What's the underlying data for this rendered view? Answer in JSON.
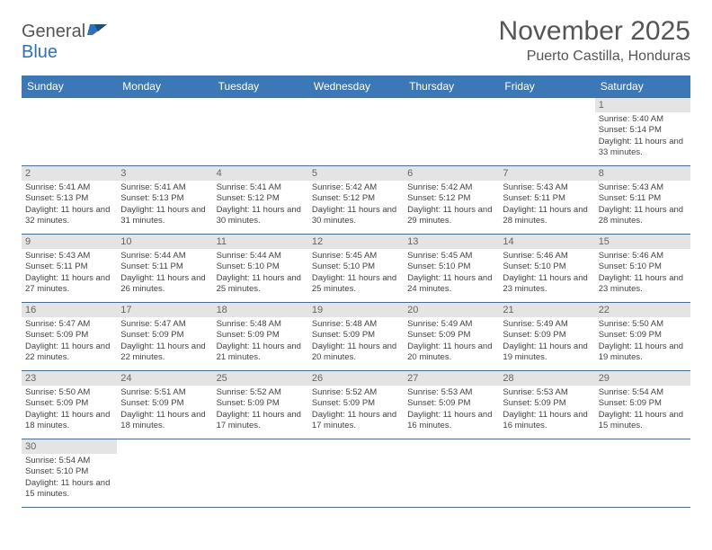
{
  "logo": {
    "text_general": "General",
    "text_blue": "Blue"
  },
  "title": "November 2025",
  "location": "Puerto Castilla, Honduras",
  "colors": {
    "header_bg": "#3b78b5",
    "header_text": "#ffffff",
    "daynum_bg": "#e4e4e4",
    "rule": "#2d72b8",
    "logo_blue": "#2d72b8"
  },
  "day_headers": [
    "Sunday",
    "Monday",
    "Tuesday",
    "Wednesday",
    "Thursday",
    "Friday",
    "Saturday"
  ],
  "weeks": [
    [
      {
        "n": "",
        "sr": "",
        "ss": "",
        "dl": ""
      },
      {
        "n": "",
        "sr": "",
        "ss": "",
        "dl": ""
      },
      {
        "n": "",
        "sr": "",
        "ss": "",
        "dl": ""
      },
      {
        "n": "",
        "sr": "",
        "ss": "",
        "dl": ""
      },
      {
        "n": "",
        "sr": "",
        "ss": "",
        "dl": ""
      },
      {
        "n": "",
        "sr": "",
        "ss": "",
        "dl": ""
      },
      {
        "n": "1",
        "sr": "Sunrise: 5:40 AM",
        "ss": "Sunset: 5:14 PM",
        "dl": "Daylight: 11 hours and 33 minutes."
      }
    ],
    [
      {
        "n": "2",
        "sr": "Sunrise: 5:41 AM",
        "ss": "Sunset: 5:13 PM",
        "dl": "Daylight: 11 hours and 32 minutes."
      },
      {
        "n": "3",
        "sr": "Sunrise: 5:41 AM",
        "ss": "Sunset: 5:13 PM",
        "dl": "Daylight: 11 hours and 31 minutes."
      },
      {
        "n": "4",
        "sr": "Sunrise: 5:41 AM",
        "ss": "Sunset: 5:12 PM",
        "dl": "Daylight: 11 hours and 30 minutes."
      },
      {
        "n": "5",
        "sr": "Sunrise: 5:42 AM",
        "ss": "Sunset: 5:12 PM",
        "dl": "Daylight: 11 hours and 30 minutes."
      },
      {
        "n": "6",
        "sr": "Sunrise: 5:42 AM",
        "ss": "Sunset: 5:12 PM",
        "dl": "Daylight: 11 hours and 29 minutes."
      },
      {
        "n": "7",
        "sr": "Sunrise: 5:43 AM",
        "ss": "Sunset: 5:11 PM",
        "dl": "Daylight: 11 hours and 28 minutes."
      },
      {
        "n": "8",
        "sr": "Sunrise: 5:43 AM",
        "ss": "Sunset: 5:11 PM",
        "dl": "Daylight: 11 hours and 28 minutes."
      }
    ],
    [
      {
        "n": "9",
        "sr": "Sunrise: 5:43 AM",
        "ss": "Sunset: 5:11 PM",
        "dl": "Daylight: 11 hours and 27 minutes."
      },
      {
        "n": "10",
        "sr": "Sunrise: 5:44 AM",
        "ss": "Sunset: 5:11 PM",
        "dl": "Daylight: 11 hours and 26 minutes."
      },
      {
        "n": "11",
        "sr": "Sunrise: 5:44 AM",
        "ss": "Sunset: 5:10 PM",
        "dl": "Daylight: 11 hours and 25 minutes."
      },
      {
        "n": "12",
        "sr": "Sunrise: 5:45 AM",
        "ss": "Sunset: 5:10 PM",
        "dl": "Daylight: 11 hours and 25 minutes."
      },
      {
        "n": "13",
        "sr": "Sunrise: 5:45 AM",
        "ss": "Sunset: 5:10 PM",
        "dl": "Daylight: 11 hours and 24 minutes."
      },
      {
        "n": "14",
        "sr": "Sunrise: 5:46 AM",
        "ss": "Sunset: 5:10 PM",
        "dl": "Daylight: 11 hours and 23 minutes."
      },
      {
        "n": "15",
        "sr": "Sunrise: 5:46 AM",
        "ss": "Sunset: 5:10 PM",
        "dl": "Daylight: 11 hours and 23 minutes."
      }
    ],
    [
      {
        "n": "16",
        "sr": "Sunrise: 5:47 AM",
        "ss": "Sunset: 5:09 PM",
        "dl": "Daylight: 11 hours and 22 minutes."
      },
      {
        "n": "17",
        "sr": "Sunrise: 5:47 AM",
        "ss": "Sunset: 5:09 PM",
        "dl": "Daylight: 11 hours and 22 minutes."
      },
      {
        "n": "18",
        "sr": "Sunrise: 5:48 AM",
        "ss": "Sunset: 5:09 PM",
        "dl": "Daylight: 11 hours and 21 minutes."
      },
      {
        "n": "19",
        "sr": "Sunrise: 5:48 AM",
        "ss": "Sunset: 5:09 PM",
        "dl": "Daylight: 11 hours and 20 minutes."
      },
      {
        "n": "20",
        "sr": "Sunrise: 5:49 AM",
        "ss": "Sunset: 5:09 PM",
        "dl": "Daylight: 11 hours and 20 minutes."
      },
      {
        "n": "21",
        "sr": "Sunrise: 5:49 AM",
        "ss": "Sunset: 5:09 PM",
        "dl": "Daylight: 11 hours and 19 minutes."
      },
      {
        "n": "22",
        "sr": "Sunrise: 5:50 AM",
        "ss": "Sunset: 5:09 PM",
        "dl": "Daylight: 11 hours and 19 minutes."
      }
    ],
    [
      {
        "n": "23",
        "sr": "Sunrise: 5:50 AM",
        "ss": "Sunset: 5:09 PM",
        "dl": "Daylight: 11 hours and 18 minutes."
      },
      {
        "n": "24",
        "sr": "Sunrise: 5:51 AM",
        "ss": "Sunset: 5:09 PM",
        "dl": "Daylight: 11 hours and 18 minutes."
      },
      {
        "n": "25",
        "sr": "Sunrise: 5:52 AM",
        "ss": "Sunset: 5:09 PM",
        "dl": "Daylight: 11 hours and 17 minutes."
      },
      {
        "n": "26",
        "sr": "Sunrise: 5:52 AM",
        "ss": "Sunset: 5:09 PM",
        "dl": "Daylight: 11 hours and 17 minutes."
      },
      {
        "n": "27",
        "sr": "Sunrise: 5:53 AM",
        "ss": "Sunset: 5:09 PM",
        "dl": "Daylight: 11 hours and 16 minutes."
      },
      {
        "n": "28",
        "sr": "Sunrise: 5:53 AM",
        "ss": "Sunset: 5:09 PM",
        "dl": "Daylight: 11 hours and 16 minutes."
      },
      {
        "n": "29",
        "sr": "Sunrise: 5:54 AM",
        "ss": "Sunset: 5:09 PM",
        "dl": "Daylight: 11 hours and 15 minutes."
      }
    ],
    [
      {
        "n": "30",
        "sr": "Sunrise: 5:54 AM",
        "ss": "Sunset: 5:10 PM",
        "dl": "Daylight: 11 hours and 15 minutes."
      },
      {
        "n": "",
        "sr": "",
        "ss": "",
        "dl": ""
      },
      {
        "n": "",
        "sr": "",
        "ss": "",
        "dl": ""
      },
      {
        "n": "",
        "sr": "",
        "ss": "",
        "dl": ""
      },
      {
        "n": "",
        "sr": "",
        "ss": "",
        "dl": ""
      },
      {
        "n": "",
        "sr": "",
        "ss": "",
        "dl": ""
      },
      {
        "n": "",
        "sr": "",
        "ss": "",
        "dl": ""
      }
    ]
  ]
}
